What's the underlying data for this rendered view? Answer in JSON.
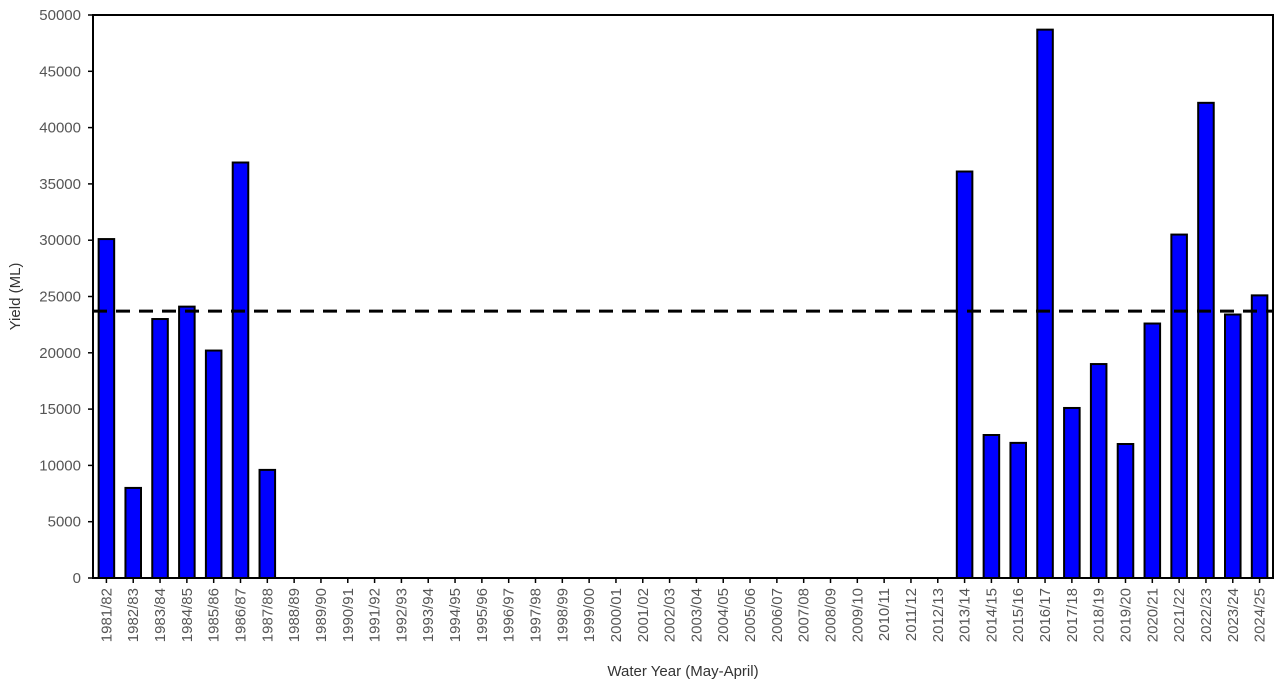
{
  "chart_data": {
    "type": "bar",
    "title": "",
    "xlabel": "Water Year (May-April)",
    "ylabel": "Yield (ML)",
    "ylim": [
      0,
      50000
    ],
    "yticks": [
      0,
      5000,
      10000,
      15000,
      20000,
      25000,
      30000,
      35000,
      40000,
      45000,
      50000
    ],
    "grid": false,
    "legend": "none",
    "bar_color": "#0000ff",
    "bar_edge_color": "#000000",
    "average_line": {
      "value": 23700,
      "style": "dashed",
      "color": "#000000"
    },
    "categories": [
      "1981/82",
      "1982/83",
      "1983/84",
      "1984/85",
      "1985/86",
      "1986/87",
      "1987/88",
      "1988/89",
      "1989/90",
      "1990/91",
      "1991/92",
      "1992/93",
      "1993/94",
      "1994/95",
      "1995/96",
      "1996/97",
      "1997/98",
      "1998/99",
      "1999/00",
      "2000/01",
      "2001/02",
      "2002/03",
      "2003/04",
      "2004/05",
      "2005/06",
      "2006/07",
      "2007/08",
      "2008/09",
      "2009/10",
      "2010/11",
      "2011/12",
      "2012/13",
      "2013/14",
      "2014/15",
      "2015/16",
      "2016/17",
      "2017/18",
      "2018/19",
      "2019/20",
      "2020/21",
      "2021/22",
      "2022/23",
      "2023/24",
      "2024/25"
    ],
    "values": [
      30100,
      8000,
      23000,
      24100,
      20200,
      36900,
      9600,
      0,
      0,
      0,
      0,
      0,
      0,
      0,
      0,
      0,
      0,
      0,
      0,
      0,
      0,
      0,
      0,
      0,
      0,
      0,
      0,
      0,
      0,
      0,
      0,
      0,
      36100,
      12700,
      12000,
      48700,
      15100,
      19000,
      11900,
      22600,
      30500,
      42200,
      23400,
      25100
    ]
  }
}
